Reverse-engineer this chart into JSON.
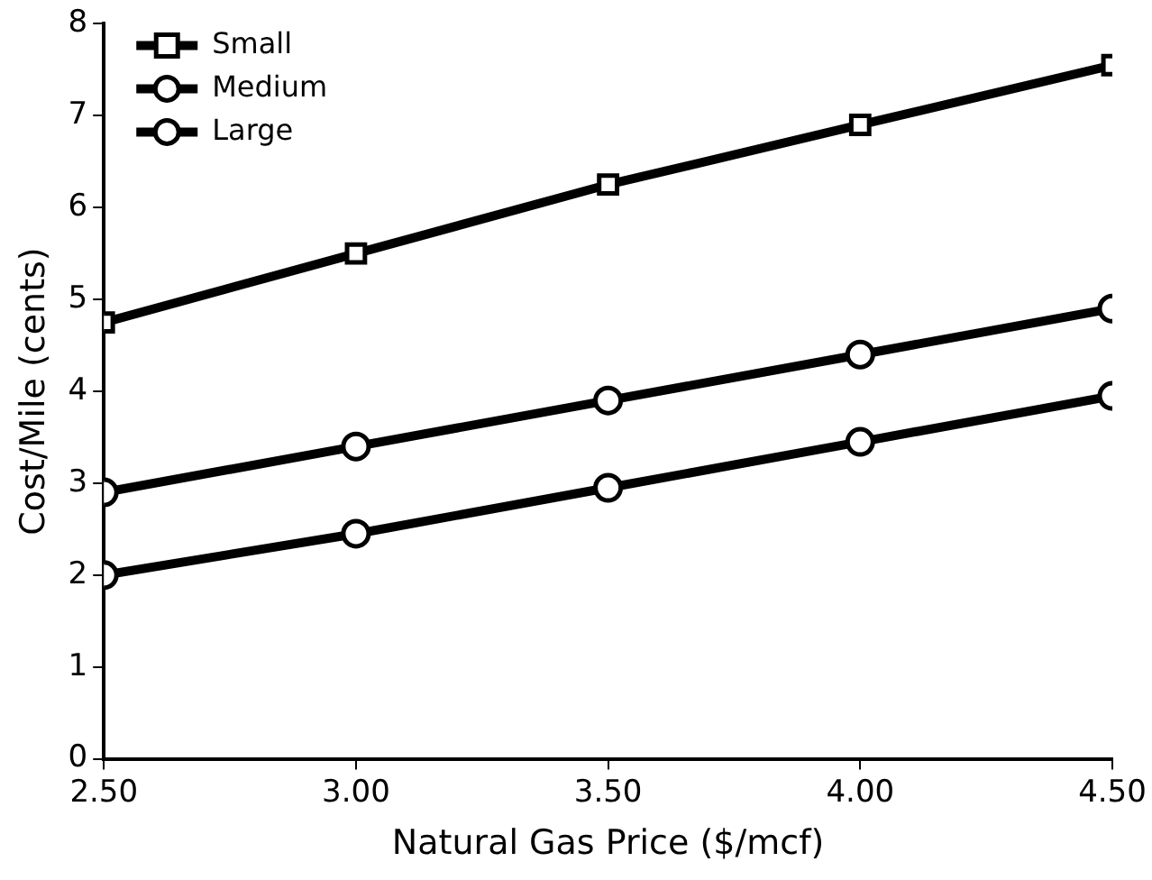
{
  "chart_data": {
    "type": "line",
    "xlabel": "Natural Gas Price ($/mcf)",
    "ylabel": "Cost/Mile (cents)",
    "x": [
      2.5,
      3.0,
      3.5,
      4.0,
      4.5
    ],
    "series": [
      {
        "name": "Small",
        "color": "#000000",
        "marker": "square",
        "values": [
          4.75,
          5.5,
          6.25,
          6.9,
          7.55
        ]
      },
      {
        "name": "Medium",
        "color": "#000000",
        "marker": "circle",
        "values": [
          2.9,
          3.4,
          3.9,
          4.4,
          4.9
        ]
      },
      {
        "name": "Large",
        "color": "#000000",
        "marker": "circle",
        "values": [
          2.0,
          2.45,
          2.95,
          3.45,
          3.95
        ]
      }
    ],
    "xlim": [
      2.5,
      4.5
    ],
    "xticks": [
      {
        "value": 2.5,
        "label": "2.50"
      },
      {
        "value": 3,
        "label": "3.00"
      },
      {
        "value": 3.5,
        "label": "3.50"
      },
      {
        "value": 4,
        "label": "4.00"
      },
      {
        "value": 4.5,
        "label": "4.50"
      }
    ],
    "ylim": [
      0,
      8
    ],
    "yticks": [
      0,
      1,
      2,
      3,
      4,
      5,
      6,
      7,
      8
    ],
    "grid": false,
    "legend": "top left",
    "line_style": "solid"
  }
}
